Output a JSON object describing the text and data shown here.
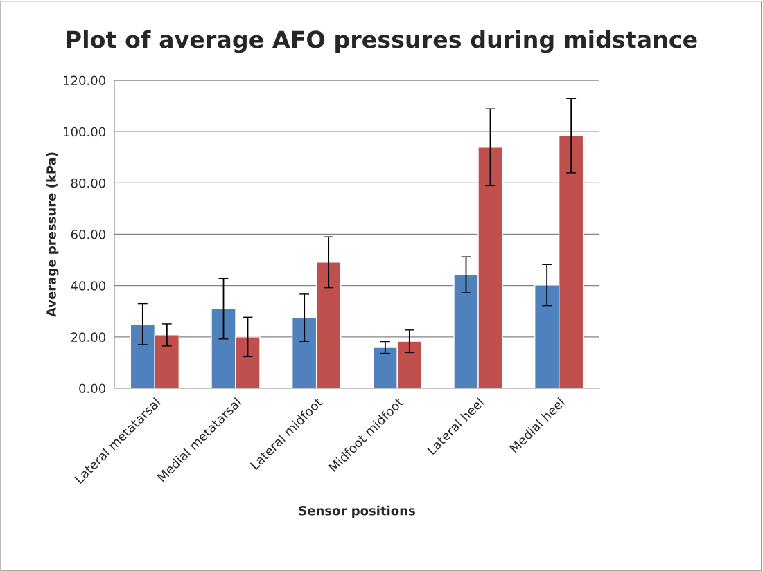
{
  "chart_data": {
    "type": "bar",
    "title": "Plot of average AFO pressures during midstance",
    "xlabel": "Sensor positions",
    "ylabel": "Average pressure (kPa)",
    "categories": [
      "Lateral metatarsal",
      "Medial metatarsal",
      "Lateral midfoot",
      "Midfoot midfoot",
      "Lateral heel",
      "Medial heel"
    ],
    "series": [
      {
        "color": "#4f81bd",
        "values": [
          25.0,
          31.0,
          27.5,
          15.9,
          44.2,
          40.2
        ],
        "errors": [
          8,
          11.8,
          9.2,
          2.3,
          7,
          8
        ]
      },
      {
        "color": "#c0504d",
        "values": [
          20.8,
          20.0,
          49.1,
          18.3,
          93.9,
          98.4
        ],
        "errors": [
          4.3,
          7.7,
          9.9,
          4.4,
          15,
          14.5
        ]
      }
    ],
    "ylim": [
      0,
      120
    ],
    "yticks": [
      {
        "value": 0,
        "label": "0.00"
      },
      {
        "value": 20,
        "label": "20.00"
      },
      {
        "value": 40,
        "label": "40.00"
      },
      {
        "value": 60,
        "label": "60.00"
      },
      {
        "value": 80,
        "label": "80.00"
      },
      {
        "value": 100,
        "label": "100.00"
      },
      {
        "value": 120,
        "label": "120.00"
      }
    ],
    "grid": "y"
  }
}
